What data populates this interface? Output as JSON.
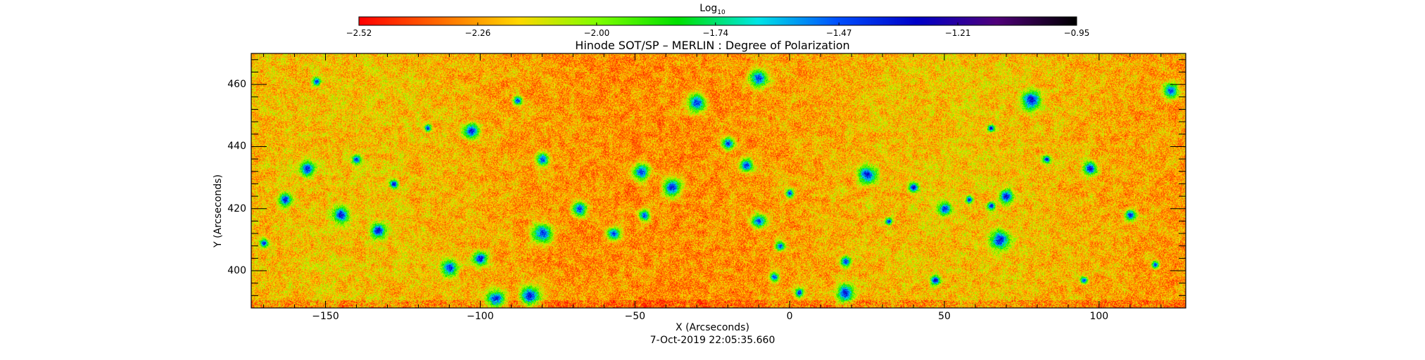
{
  "colorbar": {
    "title_main": "Log",
    "title_sub": "10",
    "ticks": [
      "-2.52",
      "-2.26",
      "-2.00",
      "-1.74",
      "-1.47",
      "-1.21",
      "-0.95"
    ],
    "range": [
      -2.52,
      -0.95
    ],
    "colors": [
      "#ff0000",
      "#ff6a00",
      "#ffd800",
      "#7fff00",
      "#00e000",
      "#00e6e6",
      "#0050ff",
      "#0000c8",
      "#50007a",
      "#000000"
    ]
  },
  "chart_data": {
    "type": "heatmap",
    "title": "Hinode SOT/SP – MERLIN : Degree of Polarization",
    "xlabel": "X (Arcseconds)",
    "ylabel": "Y (Arcseconds)",
    "xlim": [
      -174,
      128
    ],
    "ylim": [
      388,
      470
    ],
    "xticks": [
      -150,
      -100,
      -50,
      0,
      50,
      100
    ],
    "yticks": [
      400,
      420,
      440,
      460
    ],
    "xtick_labels": [
      "−150",
      "−100",
      "−50",
      "0",
      "50",
      "100"
    ],
    "ytick_labels": [
      "400",
      "420",
      "440",
      "460"
    ],
    "value_scale": "log10",
    "value_range": [
      -2.52,
      -0.95
    ],
    "grid": false,
    "date": "7-Oct-2019 22:05:35.660"
  }
}
